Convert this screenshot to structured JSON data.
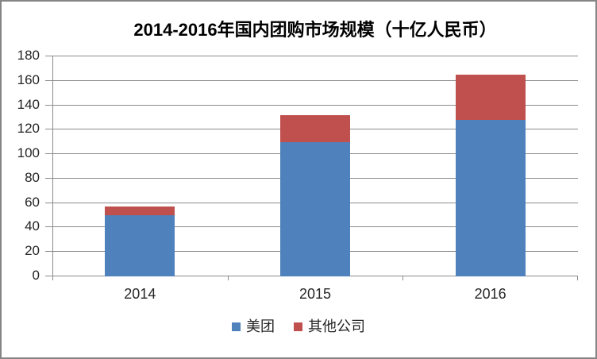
{
  "frame": {
    "background": "#ffffff",
    "border_color": "#858585"
  },
  "chart_data": {
    "type": "bar",
    "stacked": true,
    "title": "2014-2016年国内团购市场规模（十亿人民币）",
    "categories": [
      "2014",
      "2015",
      "2016"
    ],
    "series": [
      {
        "name": "美团",
        "color": "#4F81BD",
        "values": [
          50,
          110,
          128
        ]
      },
      {
        "name": "其他公司",
        "color": "#C0504D",
        "values": [
          7,
          22,
          37
        ]
      }
    ],
    "totals": [
      57,
      132,
      165
    ],
    "ylim": [
      0,
      180
    ],
    "ytick_step": 20,
    "ytick_labels": [
      "0",
      "20",
      "40",
      "60",
      "80",
      "100",
      "120",
      "140",
      "160",
      "180"
    ],
    "xlabel": "",
    "ylabel": "",
    "grid": true,
    "gridline_color": "#8C8C8C",
    "axis_color": "#8C8C8C",
    "label_color": "#262626",
    "legend_position": "bottom"
  }
}
